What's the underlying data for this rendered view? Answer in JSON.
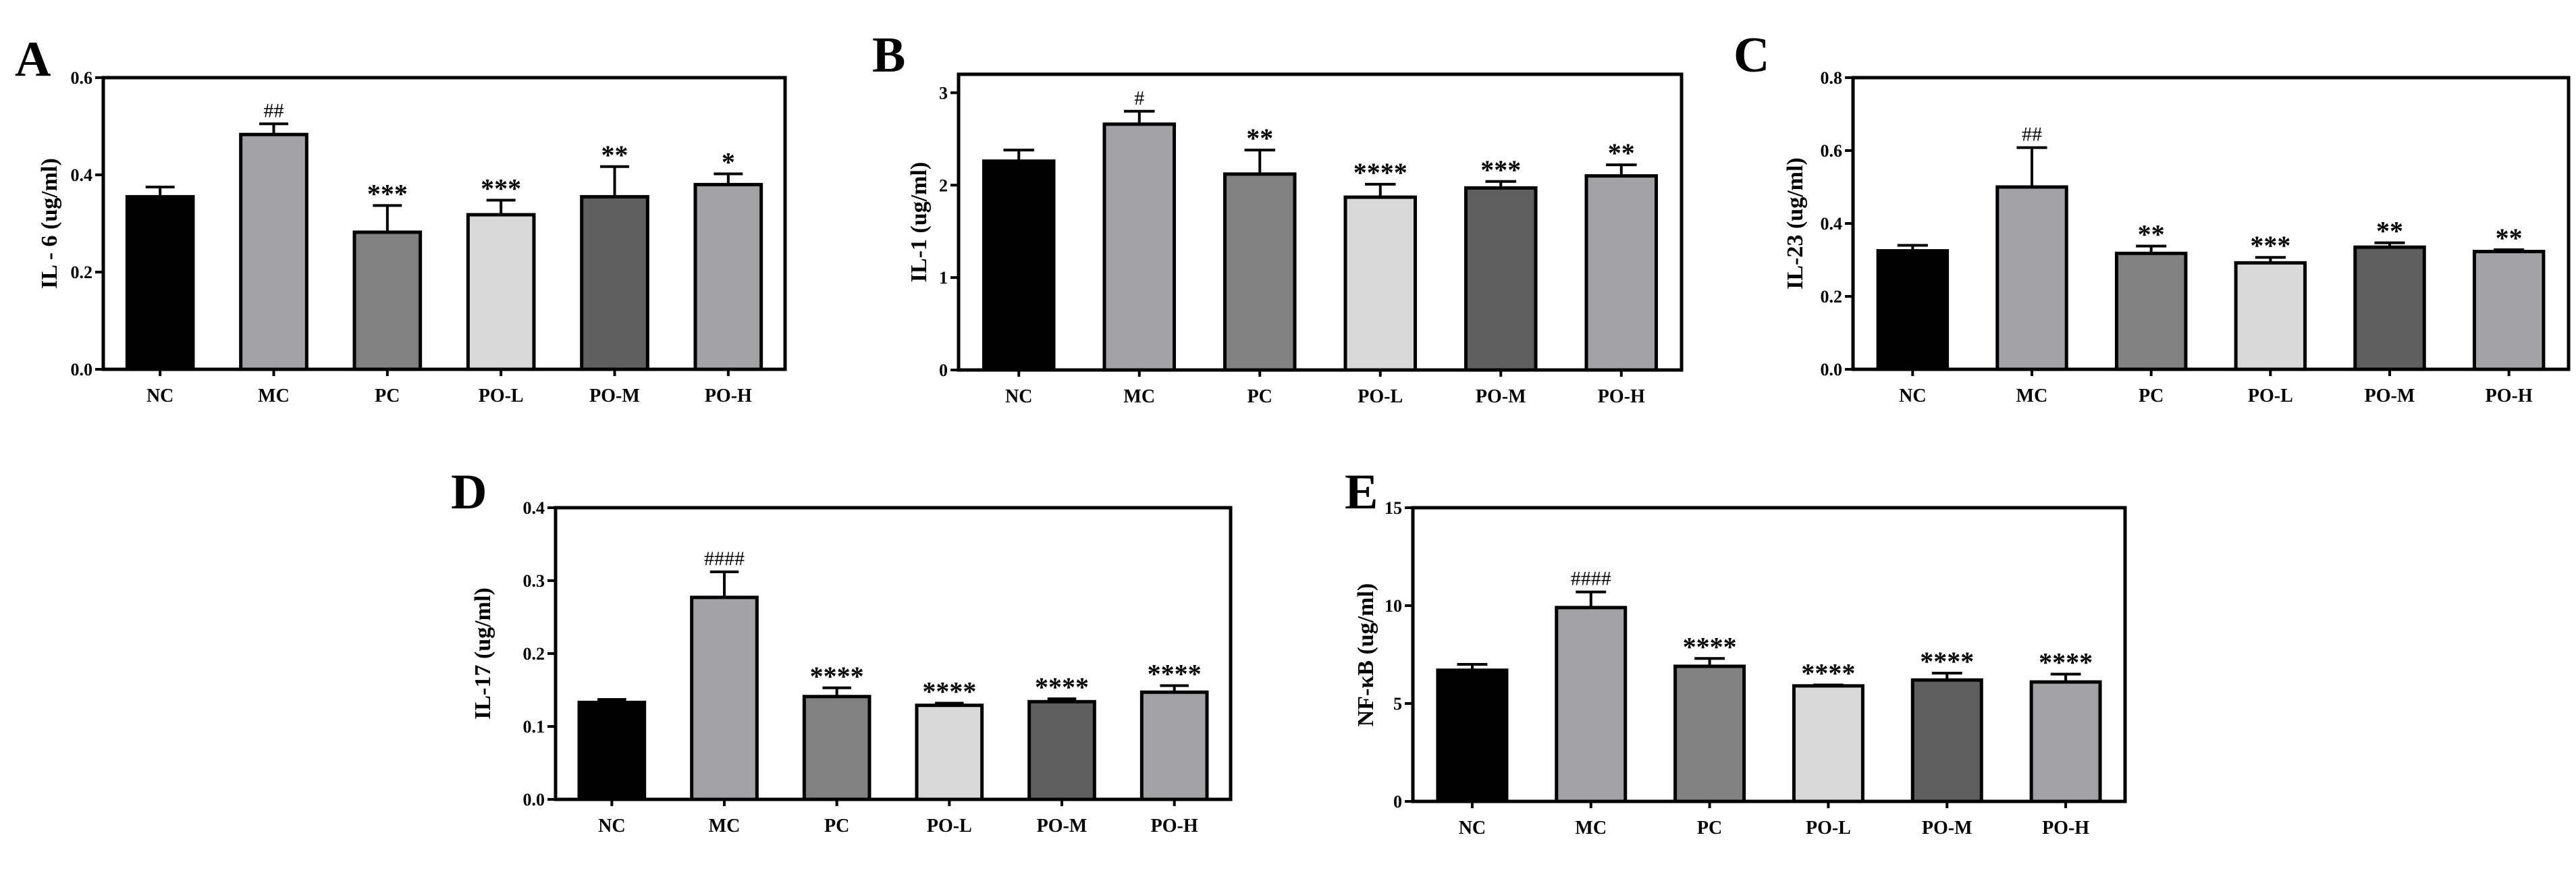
{
  "figure": {
    "colors": {
      "NC": "#000000",
      "MC": "#a3a2a7",
      "PC": "#818181",
      "PO-L": "#d8d8d8",
      "PO-M": "#5f5f5f",
      "PO-H": "#a2a2a5"
    }
  },
  "chart_data": [
    {
      "panel": "A",
      "type": "bar",
      "ylabel": "IL - 6 (ug/ml)",
      "ylim": [
        0,
        0.6
      ],
      "yticks": [
        0,
        0.2,
        0.4,
        0.6
      ],
      "ytick_labels": [
        "0.0",
        "0.2",
        "0.4",
        "0.6"
      ],
      "categories": [
        "NC",
        "MC",
        "PC",
        "PO-L",
        "PO-M",
        "PO-H"
      ],
      "values": [
        0.355,
        0.483,
        0.282,
        0.318,
        0.355,
        0.38
      ],
      "errors": [
        0.02,
        0.022,
        0.055,
        0.03,
        0.062,
        0.022
      ],
      "annotations": [
        "",
        "##",
        "***",
        "***",
        "**",
        "*"
      ]
    },
    {
      "panel": "B",
      "type": "bar",
      "ylabel": "IL-1 (ug/ml)",
      "ylim": [
        0,
        3.2
      ],
      "yticks": [
        0,
        1,
        2,
        3
      ],
      "ytick_labels": [
        "0",
        "1",
        "2",
        "3"
      ],
      "categories": [
        "NC",
        "MC",
        "PC",
        "PO-L",
        "PO-M",
        "PO-H"
      ],
      "values": [
        2.26,
        2.66,
        2.12,
        1.87,
        1.97,
        2.1
      ],
      "errors": [
        0.12,
        0.14,
        0.26,
        0.14,
        0.07,
        0.12
      ],
      "annotations": [
        "",
        "#",
        "**",
        "****",
        "***",
        "**"
      ]
    },
    {
      "panel": "C",
      "type": "bar",
      "ylabel": "IL-23 (ug/ml)",
      "ylim": [
        0,
        0.8
      ],
      "yticks": [
        0,
        0.2,
        0.4,
        0.6,
        0.8
      ],
      "ytick_labels": [
        "0.0",
        "0.2",
        "0.4",
        "0.6",
        "0.8"
      ],
      "categories": [
        "NC",
        "MC",
        "PC",
        "PO-L",
        "PO-M",
        "PO-H"
      ],
      "values": [
        0.325,
        0.5,
        0.318,
        0.292,
        0.335,
        0.323
      ],
      "errors": [
        0.015,
        0.108,
        0.02,
        0.015,
        0.012,
        0.005
      ],
      "annotations": [
        "",
        "##",
        "**",
        "***",
        "**",
        "**"
      ]
    },
    {
      "panel": "D",
      "type": "bar",
      "ylabel": "IL-17 (ug/ml)",
      "ylim": [
        0,
        0.4
      ],
      "yticks": [
        0,
        0.1,
        0.2,
        0.3,
        0.4
      ],
      "ytick_labels": [
        "0.0",
        "0.1",
        "0.2",
        "0.3",
        "0.4"
      ],
      "categories": [
        "NC",
        "MC",
        "PC",
        "PO-L",
        "PO-M",
        "PO-H"
      ],
      "values": [
        0.133,
        0.277,
        0.141,
        0.129,
        0.134,
        0.147
      ],
      "errors": [
        0.004,
        0.035,
        0.012,
        0.003,
        0.004,
        0.009
      ],
      "annotations": [
        "",
        "####",
        "****",
        "****",
        "****",
        "****"
      ]
    },
    {
      "panel": "E",
      "type": "bar",
      "ylabel": "NF-κB (ug/ml)",
      "ylim": [
        0,
        15
      ],
      "yticks": [
        0,
        5,
        10,
        15
      ],
      "ytick_labels": [
        "0",
        "5",
        "10",
        "15"
      ],
      "categories": [
        "NC",
        "MC",
        "PC",
        "PO-L",
        "PO-M",
        "PO-H"
      ],
      "values": [
        6.7,
        9.9,
        6.9,
        5.9,
        6.2,
        6.1
      ],
      "errors": [
        0.3,
        0.8,
        0.4,
        0.05,
        0.35,
        0.4
      ],
      "annotations": [
        "",
        "####",
        "****",
        "****",
        "****",
        "****"
      ]
    }
  ]
}
